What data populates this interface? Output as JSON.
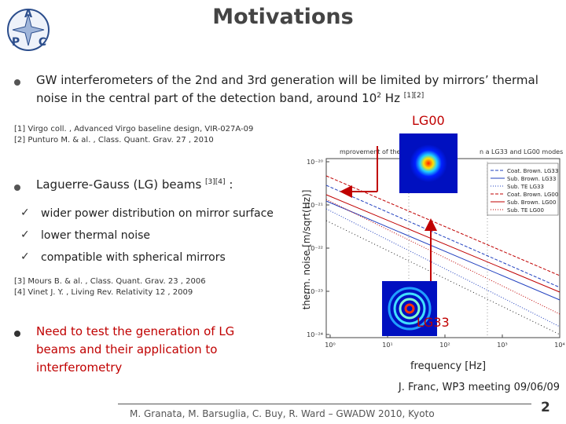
{
  "header": {
    "title": "Motivations",
    "logo_letters": [
      "A",
      "P",
      "C"
    ]
  },
  "intro": {
    "text": "GW interferometers of the 2nd and 3rd generation will be limited by mirrors’ thermal noise in the central part of the detection band, around 10",
    "sup1": "2",
    "unit": " Hz ",
    "sup2": "[1][2]"
  },
  "refs_a": [
    "[1] Virgo coll. , Advanced Virgo baseline design, VIR-027A-09",
    "[2] Punturo M. & al. , Class. Quant. Grav. 27 , 2010"
  ],
  "lg": {
    "text": "Laguerre-Gauss (LG) beams ",
    "sup": "[3][4]",
    "tail": " :"
  },
  "checks": [
    "wider power distribution on mirror surface",
    "lower thermal noise",
    "compatible with spherical mirrors"
  ],
  "refs_b": [
    "[3] Mours B. & al. , Class. Quant. Grav. 23 , 2006",
    "[4] Vinet J. Y. , Living Rev. Relativity 12 , 2009"
  ],
  "need": "Need to test the generation of LG beams and their application to interferometry",
  "plot": {
    "title_left": "mprovement of the",
    "title_right": "n a LG33 and LG00 modes",
    "ylabel": "therm. noise [m/sqrt(Hz)]",
    "xlabel": "frequency [Hz]",
    "yticks": [
      "10⁻²⁰",
      "10⁻²¹",
      "10⁻²²",
      "10⁻²³",
      "10⁻²⁴"
    ],
    "xticks": [
      "10⁰",
      "10¹",
      "10²",
      "10³",
      "10⁴"
    ],
    "legend": [
      "Coat. Brown. LG33",
      "Sub. Brown. LG33",
      "Sub. TE LG33",
      "Coat. Brown. LG00",
      "Sub. Brown. LG00",
      "Sub. TE LG00"
    ]
  },
  "beams": {
    "lg00": "LG00",
    "lg33": "LG33"
  },
  "footer": {
    "meeting": "J. Franc, WP3 meeting 09/06/09",
    "credits": "M. Granata, M. Barsuglia, C. Buy, R. Ward – GWADW 2010, Kyoto",
    "page": "2"
  }
}
